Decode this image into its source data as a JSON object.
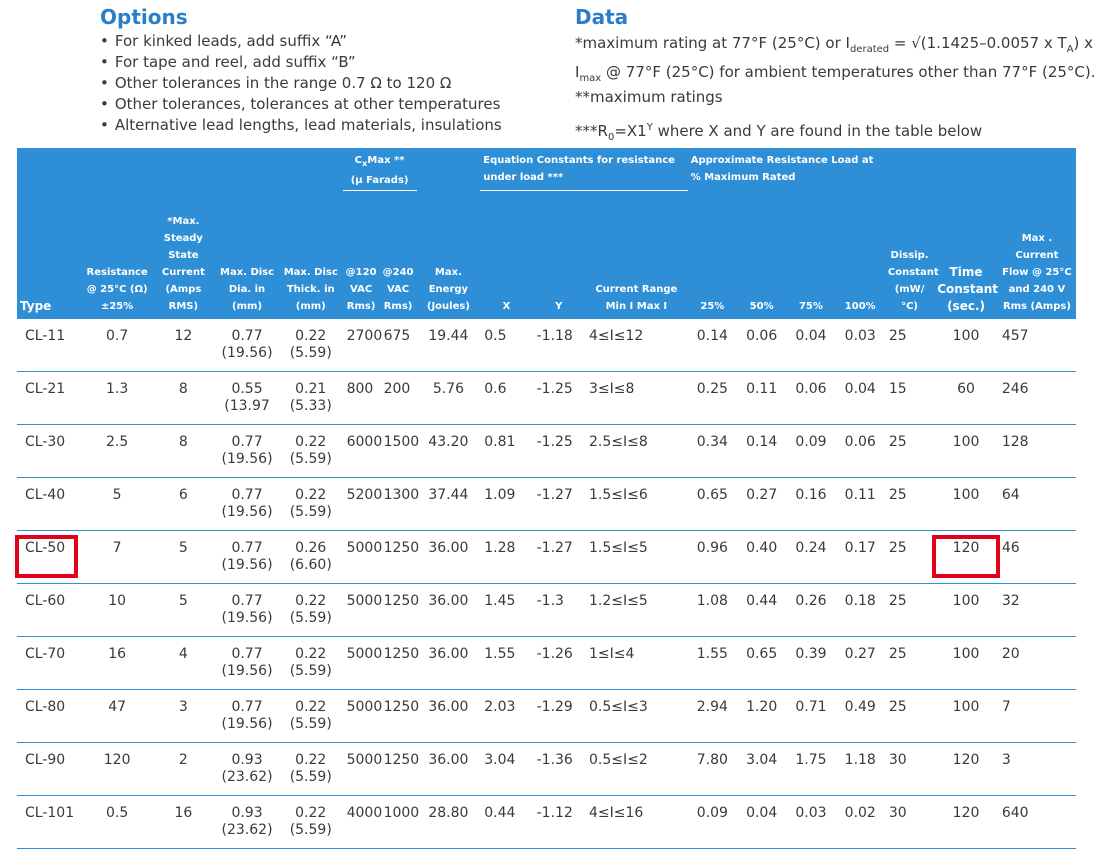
{
  "options": {
    "title": "Options",
    "items": [
      "For kinked leads, add suffix “A”",
      "For tape and reel, add suffix “B”",
      "Other tolerances in the range 0.7 Ω to 120 Ω",
      "Other tolerances, tolerances at other temperatures",
      "Alternative lead lengths, lead materials, insulations"
    ]
  },
  "data_section": {
    "title": "Data",
    "note1_a": "*maximum rating at 77°F (25°C) or I",
    "note1_sub1": "derated",
    "note1_b": " = √(1.1425–0.0057 x T",
    "note1_sub2": "A",
    "note1_c": ") x",
    "note1_d": "I",
    "note1_sub3": "max",
    "note1_e": " @ 77°F (25°C) for ambient temperatures other than 77°F (25°C).",
    "note2": "**maximum ratings",
    "note3_a": "***R",
    "note3_sub": "0",
    "note3_b": "=X1",
    "note3_sup": "Y",
    "note3_c": " where X and Y are found in the table below"
  },
  "table": {
    "groups": {
      "cx_a": "C",
      "cx_sub": "x",
      "cx_b": "Max **",
      "cx_units": "(μ Farads)",
      "eq": "Equation Constants for resistance under load ***",
      "approx": "Approximate Resistance Load at % Maximum Rated"
    },
    "headers": {
      "type": "Type",
      "resistance": "Resistance @ 25°C (Ω) ±25%",
      "current": "*Max. Steady State Current (Amps RMS)",
      "dia": "Max. Disc Dia. in (mm)",
      "thick": "Max. Disc Thick. in (mm)",
      "c120": "@120 VAC Rms)",
      "c240": "@240 VAC Rms)",
      "energy": "Max. Energy (Joules)",
      "x": "X",
      "y": "Y",
      "range_title": "Current Range",
      "range_sub": "Min I   Max I",
      "p25": "25%",
      "p50": "50%",
      "p75": "75%",
      "p100": "100%",
      "dissip": "Dissip. Constant (mW/°C)",
      "time_const": "Time Constant (sec.)",
      "max_flow": "Max . Current Flow @ 25°C and 240 V Rms (Amps)"
    },
    "rows": [
      {
        "type": "CL-11",
        "res": "0.7",
        "cur": "12",
        "dia": "0.77",
        "dia_mm": "(19.56)",
        "th": "0.22",
        "th_mm": "(5.59)",
        "c120": "2700",
        "c240": "675",
        "energy": "19.44",
        "x": "0.5",
        "y": "-1.18",
        "rmin": "4",
        "rmax": "12",
        "p25": "0.14",
        "p50": "0.06",
        "p75": "0.04",
        "p100": "0.03",
        "dissip": "25",
        "tc": "100",
        "flow": "457"
      },
      {
        "type": "CL-21",
        "res": "1.3",
        "cur": "8",
        "dia": "0.55",
        "dia_mm": "(13.97",
        "th": "0.21",
        "th_mm": "(5.33)",
        "c120": "800",
        "c240": "200",
        "energy": "5.76",
        "x": "0.6",
        "y": "-1.25",
        "rmin": "3",
        "rmax": "8",
        "p25": "0.25",
        "p50": "0.11",
        "p75": "0.06",
        "p100": "0.04",
        "dissip": "15",
        "tc": "60",
        "flow": "246"
      },
      {
        "type": "CL-30",
        "res": "2.5",
        "cur": "8",
        "dia": "0.77",
        "dia_mm": "(19.56)",
        "th": "0.22",
        "th_mm": "(5.59)",
        "c120": "6000",
        "c240": "1500",
        "energy": "43.20",
        "x": "0.81",
        "y": "-1.25",
        "rmin": "2.5",
        "rmax": "8",
        "p25": "0.34",
        "p50": "0.14",
        "p75": "0.09",
        "p100": "0.06",
        "dissip": "25",
        "tc": "100",
        "flow": "128"
      },
      {
        "type": "CL-40",
        "res": "5",
        "cur": "6",
        "dia": "0.77",
        "dia_mm": "(19.56)",
        "th": "0.22",
        "th_mm": "(5.59)",
        "c120": "5200",
        "c240": "1300",
        "energy": "37.44",
        "x": "1.09",
        "y": "-1.27",
        "rmin": "1.5",
        "rmax": "6",
        "p25": "0.65",
        "p50": "0.27",
        "p75": "0.16",
        "p100": "0.11",
        "dissip": "25",
        "tc": "100",
        "flow": "64"
      },
      {
        "type": "CL-50",
        "res": "7",
        "cur": "5",
        "dia": "0.77",
        "dia_mm": "(19.56)",
        "th": "0.26",
        "th_mm": "(6.60)",
        "c120": "5000",
        "c240": "1250",
        "energy": "36.00",
        "x": "1.28",
        "y": "-1.27",
        "rmin": "1.5",
        "rmax": "5",
        "p25": "0.96",
        "p50": "0.40",
        "p75": "0.24",
        "p100": "0.17",
        "dissip": "25",
        "tc": "120",
        "flow": "46"
      },
      {
        "type": "CL-60",
        "res": "10",
        "cur": "5",
        "dia": "0.77",
        "dia_mm": "(19.56)",
        "th": "0.22",
        "th_mm": "(5.59)",
        "c120": "5000",
        "c240": "1250",
        "energy": "36.00",
        "x": "1.45",
        "y": "-1.3",
        "rmin": "1.2",
        "rmax": "5",
        "p25": "1.08",
        "p50": "0.44",
        "p75": "0.26",
        "p100": "0.18",
        "dissip": "25",
        "tc": "100",
        "flow": "32"
      },
      {
        "type": "CL-70",
        "res": "16",
        "cur": "4",
        "dia": "0.77",
        "dia_mm": "(19.56)",
        "th": "0.22",
        "th_mm": "(5.59)",
        "c120": "5000",
        "c240": "1250",
        "energy": "36.00",
        "x": "1.55",
        "y": "-1.26",
        "rmin": "1",
        "rmax": "4",
        "p25": "1.55",
        "p50": "0.65",
        "p75": "0.39",
        "p100": "0.27",
        "dissip": "25",
        "tc": "100",
        "flow": "20"
      },
      {
        "type": "CL-80",
        "res": "47",
        "cur": "3",
        "dia": "0.77",
        "dia_mm": "(19.56)",
        "th": "0.22",
        "th_mm": "(5.59)",
        "c120": "5000",
        "c240": "1250",
        "energy": "36.00",
        "x": "2.03",
        "y": "-1.29",
        "rmin": "0.5",
        "rmax": "3",
        "p25": "2.94",
        "p50": "1.20",
        "p75": "0.71",
        "p100": "0.49",
        "dissip": "25",
        "tc": "100",
        "flow": "7"
      },
      {
        "type": "CL-90",
        "res": "120",
        "cur": "2",
        "dia": "0.93",
        "dia_mm": "(23.62)",
        "th": "0.22",
        "th_mm": "(5.59)",
        "c120": "5000",
        "c240": "1250",
        "energy": "36.00",
        "x": "3.04",
        "y": "-1.36",
        "rmin": "0.5",
        "rmax": "2",
        "p25": "7.80",
        "p50": "3.04",
        "p75": "1.75",
        "p100": "1.18",
        "dissip": "30",
        "tc": "120",
        "flow": "3"
      },
      {
        "type": "CL-101",
        "res": "0.5",
        "cur": "16",
        "dia": "0.93",
        "dia_mm": "(23.62)",
        "th": "0.22",
        "th_mm": "(5.59)",
        "c120": "4000",
        "c240": "1000",
        "energy": "28.80",
        "x": "0.44",
        "y": "-1.12",
        "rmin": "4",
        "rmax": "16",
        "p25": "0.09",
        "p50": "0.04",
        "p75": "0.03",
        "p100": "0.02",
        "dissip": "30",
        "tc": "120",
        "flow": "640"
      }
    ],
    "range_symbol": "≤I≤",
    "highlight_color": "#e3001b",
    "header_color": "#2f8fd6",
    "title_color": "#2a7ec8"
  }
}
